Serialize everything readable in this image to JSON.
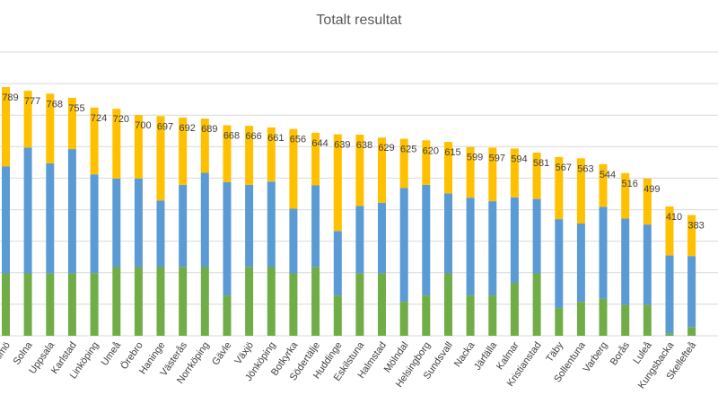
{
  "chart_data": {
    "type": "bar",
    "stacked": true,
    "title": "Totalt resultat",
    "xlabel": "",
    "ylabel": "",
    "ylim": [
      0,
      900
    ],
    "grid": true,
    "legend": "none",
    "categories": [
      "Malmö",
      "Solna",
      "Uppsala",
      "Karlstad",
      "Linköping",
      "Umeå",
      "Örebro",
      "Haninge",
      "Västerås",
      "Norrköping",
      "Gävle",
      "Växjö",
      "Jönköping",
      "Botkyrka",
      "Södertälje",
      "Huddinge",
      "Eskilstuna",
      "Halmstad",
      "Mölndal",
      "Helsingborg",
      "Sundsvall",
      "Nacka",
      "Järfälla",
      "Kalmar",
      "Kristianstad",
      "Täby",
      "Sollentuna",
      "Varberg",
      "Borås",
      "Luleå",
      "Kungsbacka",
      "Skellefteå"
    ],
    "totals": [
      789,
      777,
      768,
      755,
      724,
      720,
      700,
      697,
      692,
      689,
      668,
      666,
      661,
      656,
      644,
      639,
      638,
      629,
      625,
      620,
      615,
      599,
      597,
      594,
      581,
      567,
      563,
      544,
      516,
      499,
      410,
      383
    ],
    "total_labels": [
      "789",
      "777",
      "768",
      "755",
      "724",
      "720",
      "700",
      "697",
      "692",
      "689",
      "668",
      "666",
      "661",
      "656",
      "644",
      "639",
      "638",
      "629",
      "625",
      "620",
      "615",
      "599",
      "597",
      "594",
      "581",
      "567",
      "563",
      "544",
      "516",
      "499",
      "410",
      "383"
    ],
    "series": [
      {
        "name": "green",
        "color": "#70ad47",
        "values": [
          198,
          198,
          198,
          198,
          198,
          218,
          218,
          218,
          218,
          218,
          128,
          218,
          218,
          198,
          218,
          128,
          198,
          198,
          108,
          128,
          198,
          128,
          128,
          168,
          198,
          88,
          108,
          118,
          98,
          98,
          8,
          28
        ]
      },
      {
        "name": "blue",
        "color": "#5b9bd5",
        "values": [
          339,
          399,
          349,
          394,
          314,
          281,
          281,
          211,
          261,
          299,
          360,
          261,
          271,
          205,
          259,
          204,
          214,
          224,
          361,
          351,
          254,
          310,
          299,
          271,
          236,
          282,
          248,
          291,
          274,
          255,
          247,
          225
        ]
      },
      {
        "name": "yellow",
        "color": "#ffc000",
        "values": [
          252,
          180,
          221,
          163,
          212,
          221,
          201,
          268,
          213,
          172,
          180,
          187,
          172,
          253,
          167,
          307,
          226,
          207,
          156,
          141,
          163,
          161,
          170,
          155,
          147,
          197,
          207,
          135,
          144,
          146,
          155,
          130
        ]
      }
    ]
  }
}
